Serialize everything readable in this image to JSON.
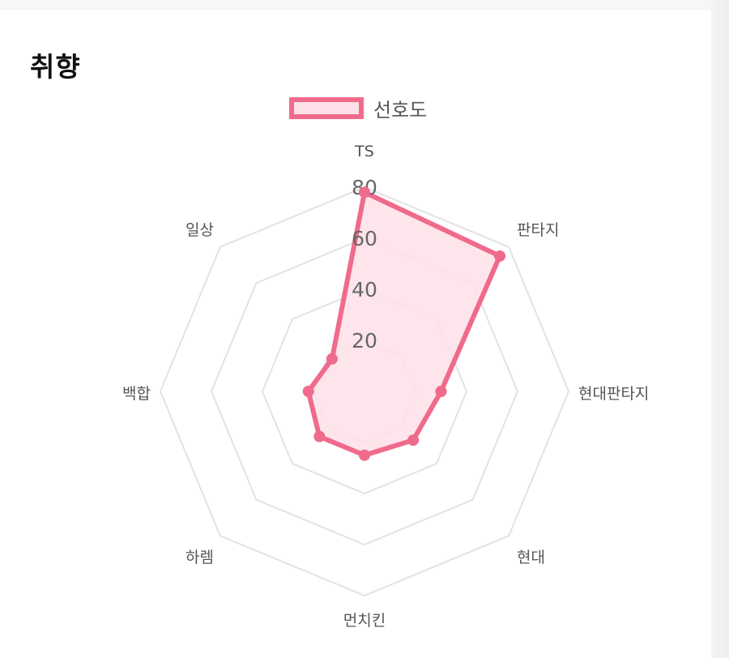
{
  "page": {
    "title": "취향"
  },
  "chart_data": {
    "type": "radar",
    "categories": [
      "TS",
      "판타지",
      "현대판타지",
      "현대",
      "먼치킨",
      "하렘",
      "백합",
      "일상"
    ],
    "series": [
      {
        "name": "선호도",
        "values": [
          78,
          75,
          30,
          27,
          25,
          25,
          22,
          18
        ]
      }
    ],
    "rlim": [
      0,
      80
    ],
    "rticks": [
      20,
      40,
      60,
      80
    ],
    "grid": true,
    "legend": "top",
    "colors": {
      "line": "#f06a8c",
      "fill": "#fde0e7",
      "grid": "#e3e3e3",
      "label": "#555555"
    }
  }
}
